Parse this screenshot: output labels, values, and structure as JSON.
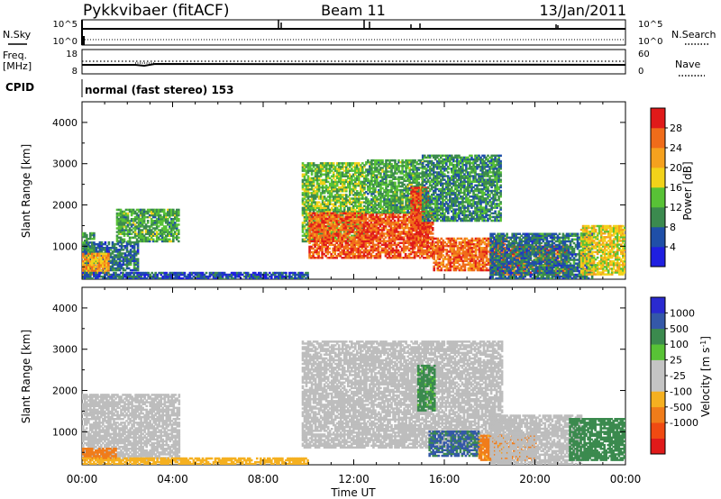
{
  "header": {
    "station": "Pykkvibaer (fitACF)",
    "beam": "Beam 11",
    "date": "13/Jan/2011"
  },
  "strip_labels": {
    "nsky": "N.Sky",
    "nsearch": "N.Search",
    "freq_line1": "Freq.",
    "freq_line2": "[MHz]",
    "nave": "Nave",
    "cpid": "CPID",
    "cpid_text": "normal (fast stereo) 153"
  },
  "strip_ticks": {
    "nsky_top": "10^5",
    "nsky_bottom": "10^0",
    "nsearch_top": "10^5",
    "nsearch_bottom": "10^0",
    "freq_top": "18",
    "freq_bottom": "8",
    "nave_top": "60",
    "nave_bottom": "0"
  },
  "x_axis": {
    "label": "Time UT",
    "ticks": [
      "00:00",
      "04:00",
      "08:00",
      "12:00",
      "16:00",
      "20:00",
      "00:00"
    ]
  },
  "colors": {
    "power_scale": [
      "#1f1fe0",
      "#1f4fa8",
      "#3b8a4e",
      "#58c236",
      "#f2d21a",
      "#f5a11e",
      "#f06c1a",
      "#e01a1a"
    ],
    "velocity_scale": [
      "#e01a1a",
      "#f04a12",
      "#f07c1a",
      "#f5b020",
      "#c4c4c4",
      "#c4c4c4",
      "#58c236",
      "#3b8a4e",
      "#3458a8",
      "#2a2ad0"
    ],
    "ground_scatter": "#bdbdbd"
  },
  "chart_data": [
    {
      "type": "heatmap",
      "title": "",
      "xlabel": "",
      "ylabel": "Slant Range [km]",
      "x_range_hours": [
        0,
        24
      ],
      "ylim": [
        200,
        4500
      ],
      "yticks": [
        1000,
        2000,
        3000,
        4000
      ],
      "colorbar": {
        "label": "Power [dB]",
        "min": 0,
        "max": 32,
        "ticks": [
          4,
          8,
          12,
          16,
          20,
          24,
          28
        ]
      },
      "echo_regions": [
        {
          "t_start": 0.0,
          "t_end": 0.5,
          "range_low": 350,
          "range_high": 1300,
          "power_db": 10
        },
        {
          "t_start": 0.5,
          "t_end": 2.5,
          "range_low": 400,
          "range_high": 1100,
          "power_db": 8
        },
        {
          "t_start": 1.5,
          "t_end": 4.3,
          "range_low": 1100,
          "range_high": 1900,
          "power_db": 12
        },
        {
          "t_start": 0.0,
          "t_end": 1.2,
          "range_low": 300,
          "range_high": 800,
          "power_db": 22
        },
        {
          "t_start": 0.0,
          "t_end": 10.0,
          "range_low": 200,
          "range_high": 350,
          "power_db": 6
        },
        {
          "t_start": 9.7,
          "t_end": 12.5,
          "range_low": 1100,
          "range_high": 3000,
          "power_db": 14
        },
        {
          "t_start": 10.0,
          "t_end": 15.5,
          "range_low": 700,
          "range_high": 1800,
          "power_db": 27
        },
        {
          "t_start": 12.5,
          "t_end": 15.0,
          "range_low": 1800,
          "range_high": 3100,
          "power_db": 12
        },
        {
          "t_start": 14.5,
          "t_end": 15.3,
          "range_low": 1000,
          "range_high": 2400,
          "power_db": 28
        },
        {
          "t_start": 15.0,
          "t_end": 18.5,
          "range_low": 1600,
          "range_high": 3200,
          "power_db": 10
        },
        {
          "t_start": 15.5,
          "t_end": 18.7,
          "range_low": 400,
          "range_high": 1200,
          "power_db": 26
        },
        {
          "t_start": 18.0,
          "t_end": 21.5,
          "range_low": 300,
          "range_high": 1000,
          "power_db": 26
        },
        {
          "t_start": 18.0,
          "t_end": 22.5,
          "range_low": 200,
          "range_high": 1300,
          "power_db": 8
        },
        {
          "t_start": 22.0,
          "t_end": 24.0,
          "range_low": 300,
          "range_high": 1500,
          "power_db": 18
        }
      ]
    },
    {
      "type": "heatmap",
      "title": "",
      "xlabel": "Time UT",
      "ylabel": "Slant Range [km]",
      "x_range_hours": [
        0,
        24
      ],
      "ylim": [
        200,
        4500
      ],
      "yticks": [
        1000,
        2000,
        3000,
        4000
      ],
      "colorbar": {
        "label": "Velocity [m s^-1]",
        "min": -1500,
        "max": 1500,
        "ticks": [
          1000,
          500,
          100,
          25,
          -25,
          -100,
          -500,
          -1000
        ]
      },
      "echo_regions": [
        {
          "t_start": 0.0,
          "t_end": 4.3,
          "range_low": 300,
          "range_high": 1900,
          "velocity": 0
        },
        {
          "t_start": 0.0,
          "t_end": 1.5,
          "range_low": 300,
          "range_high": 600,
          "velocity": -200
        },
        {
          "t_start": 0.0,
          "t_end": 10.0,
          "range_low": 200,
          "range_high": 350,
          "velocity": -50
        },
        {
          "t_start": 9.7,
          "t_end": 18.5,
          "range_low": 600,
          "range_high": 3200,
          "velocity": 0
        },
        {
          "t_start": 14.8,
          "t_end": 15.6,
          "range_low": 1500,
          "range_high": 2600,
          "velocity": 150
        },
        {
          "t_start": 15.3,
          "t_end": 17.5,
          "range_low": 400,
          "range_high": 1000,
          "velocity": 600
        },
        {
          "t_start": 17.5,
          "t_end": 20.0,
          "range_low": 300,
          "range_high": 900,
          "velocity": -150
        },
        {
          "t_start": 18.0,
          "t_end": 22.0,
          "range_low": 200,
          "range_high": 1400,
          "velocity": 0
        },
        {
          "t_start": 21.5,
          "t_end": 24.0,
          "range_low": 300,
          "range_high": 1300,
          "velocity": 300
        }
      ]
    }
  ]
}
